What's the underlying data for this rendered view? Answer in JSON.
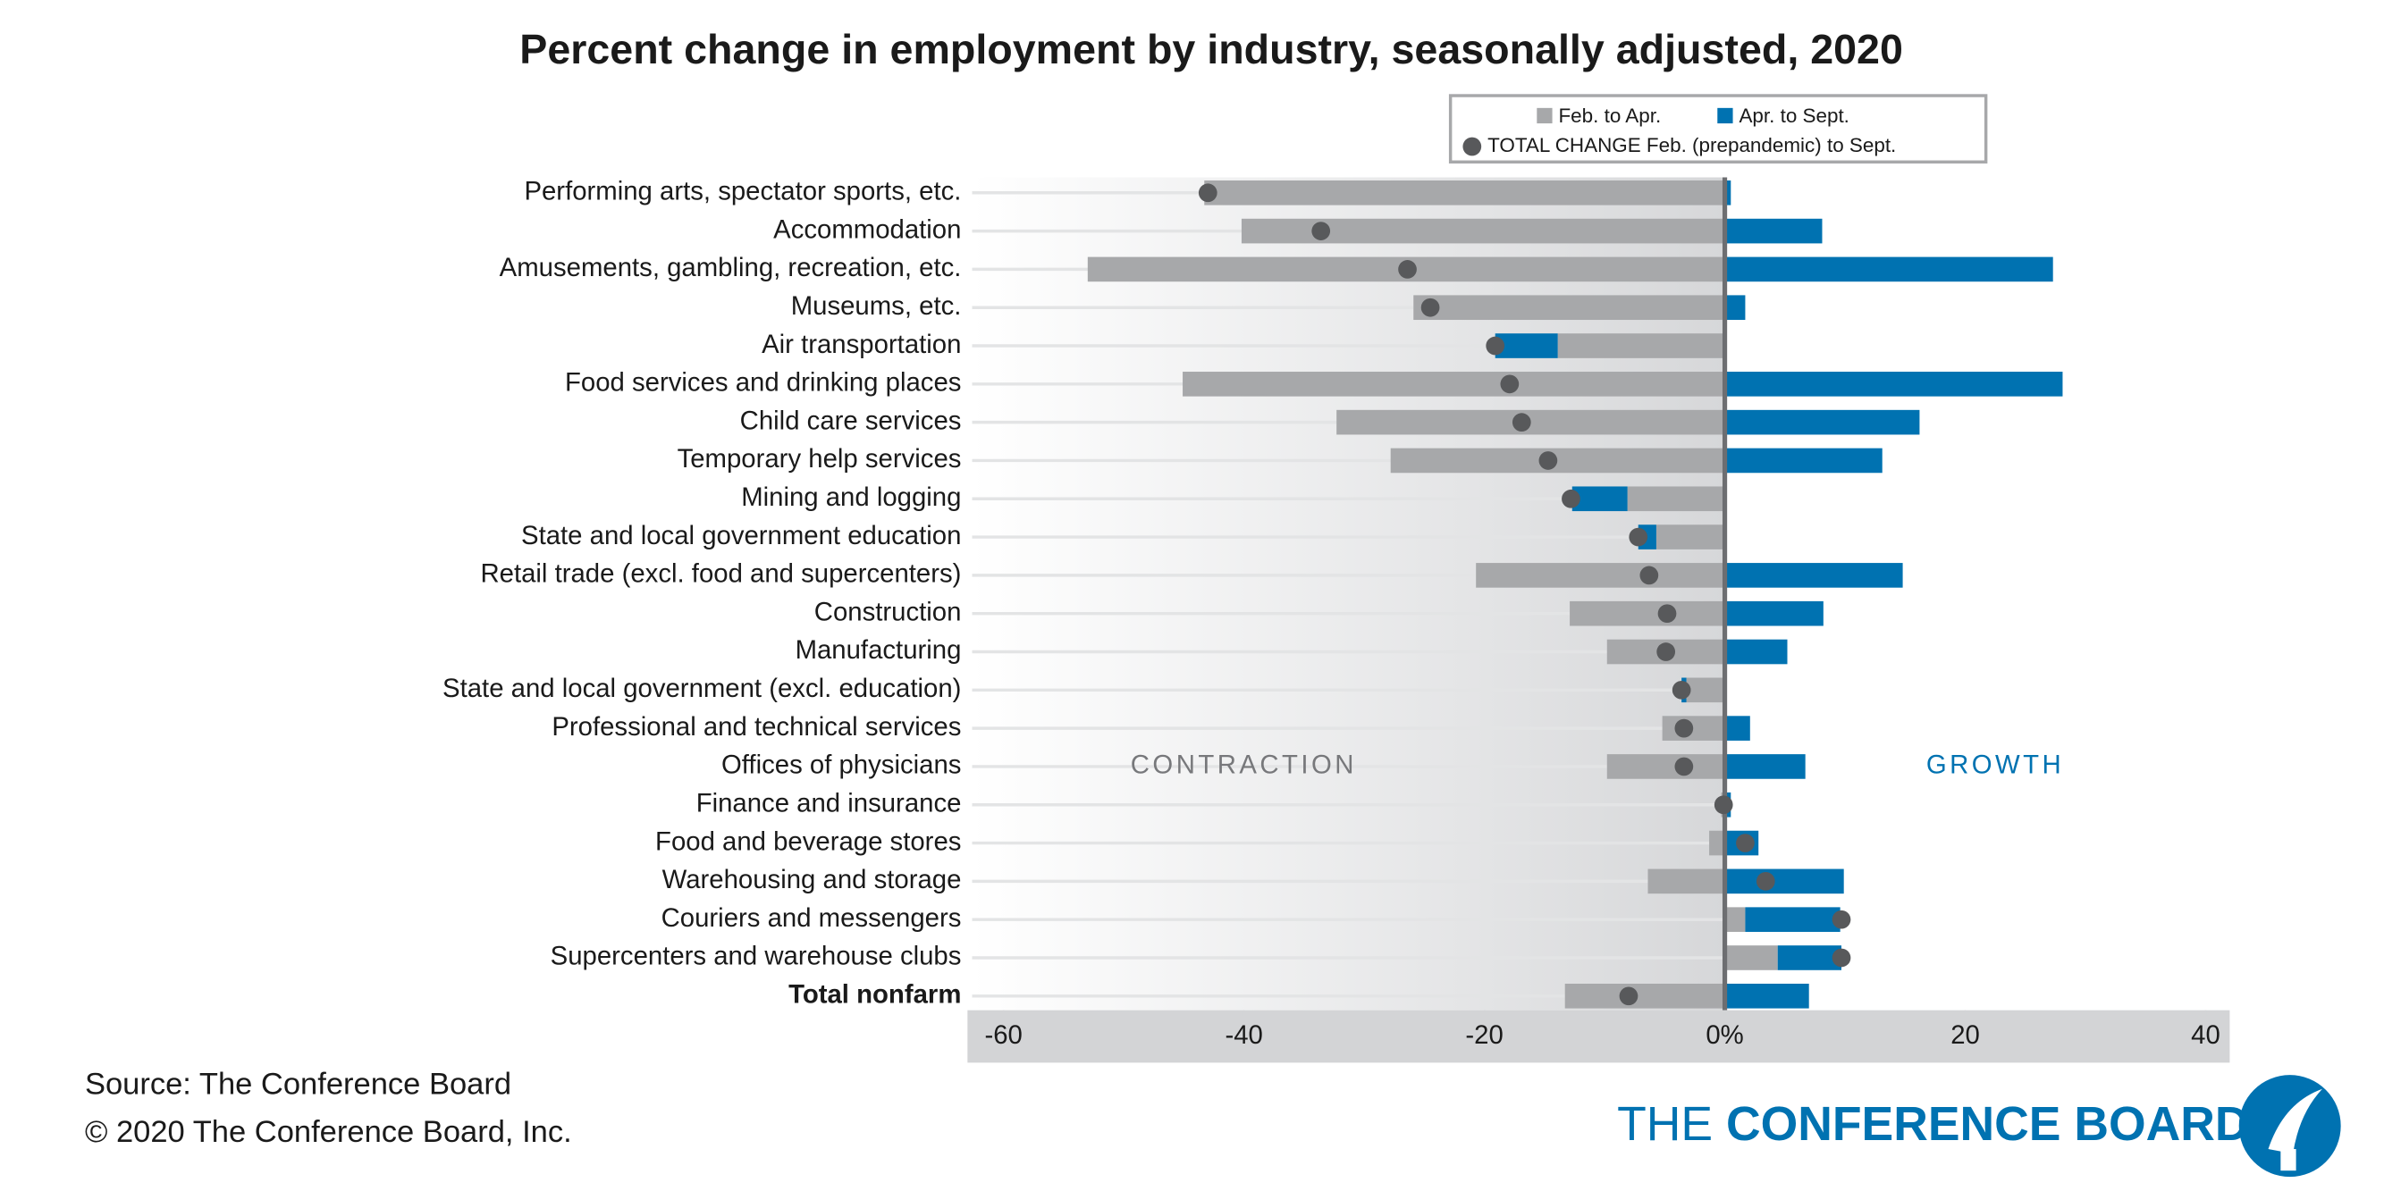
{
  "chart_data": {
    "type": "bar",
    "orientation": "horizontal",
    "title": "Percent change in employment by industry, seasonally adjusted, 2020",
    "categories": [
      "Performing arts, spectator sports, etc.",
      "Accommodation",
      "Amusements, gambling, recreation, etc.",
      "Museums, etc.",
      "Air transportation",
      "Food services and drinking places",
      "Child care services",
      "Temporary help services",
      "Mining and logging",
      "State and local government education",
      "Retail trade (excl. food and supercenters)",
      "Construction",
      "Manufacturing",
      "State and local government (excl. education)",
      "Professional and technical services",
      "Offices of physicians",
      "Finance and insurance",
      "Food and beverage stores",
      "Warehousing and storage",
      "Couriers and messengers",
      "Supercenters and warehouse clubs",
      "Total nonfarm"
    ],
    "series": [
      {
        "name": "Feb. to Apr.",
        "color": "#a7a8aa",
        "values": [
          -43.3,
          -40.2,
          -53.0,
          -25.9,
          -13.9,
          -45.1,
          -32.3,
          -27.8,
          -8.1,
          -5.7,
          -20.7,
          -12.9,
          -9.8,
          -3.2,
          -5.2,
          -9.8,
          -0.3,
          -1.3,
          -6.4,
          1.7,
          4.4,
          -13.3
        ]
      },
      {
        "name": "Apr. to Sept.",
        "color": "#0072b1",
        "values": [
          0.5,
          8.1,
          27.3,
          1.7,
          -5.2,
          28.1,
          16.2,
          13.1,
          -4.6,
          -1.5,
          14.8,
          8.2,
          5.2,
          -0.4,
          2.1,
          6.7,
          0.5,
          2.8,
          9.9,
          7.9,
          5.3,
          7.0
        ]
      },
      {
        "name": "TOTAL CHANGE Feb. (prepandemic) to Sept.",
        "color": "#58595b",
        "values": [
          -43.0,
          -33.6,
          -26.4,
          -24.5,
          -19.1,
          -17.9,
          -16.9,
          -14.7,
          -12.8,
          -7.2,
          -6.3,
          -4.8,
          -4.9,
          -3.6,
          -3.4,
          -3.4,
          -0.1,
          1.7,
          3.4,
          9.7,
          9.7,
          -8.0
        ]
      }
    ],
    "xlim": [
      -63,
      42
    ],
    "xticks": [
      -60,
      -40,
      -20,
      {
        "value": 0,
        "label": "0%"
      },
      20,
      40
    ],
    "annotations": [
      "CONTRACTION",
      "GROWTH"
    ],
    "source": "Source: The Conference Board",
    "copyright": "© 2020 The Conference Board, Inc.",
    "logo": {
      "prefix": "THE",
      "name": "CONFERENCE BOARD"
    }
  }
}
